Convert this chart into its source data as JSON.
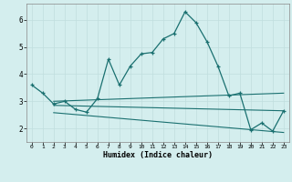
{
  "title": "",
  "xlabel": "Humidex (Indice chaleur)",
  "background_color": "#d4eeee",
  "grid_color": "#c0dede",
  "line_color": "#1a7070",
  "xlim": [
    -0.5,
    23.5
  ],
  "ylim": [
    1.5,
    6.6
  ],
  "xticks": [
    0,
    1,
    2,
    3,
    4,
    5,
    6,
    7,
    8,
    9,
    10,
    11,
    12,
    13,
    14,
    15,
    16,
    17,
    18,
    19,
    20,
    21,
    22,
    23
  ],
  "yticks": [
    2,
    3,
    4,
    5,
    6
  ],
  "series": {
    "main": {
      "x": [
        0,
        1,
        2,
        3,
        4,
        5,
        6,
        7,
        8,
        9,
        10,
        11,
        12,
        13,
        14,
        15,
        16,
        17,
        18,
        19,
        20,
        21,
        22,
        23
      ],
      "y": [
        3.6,
        3.3,
        2.9,
        3.0,
        2.7,
        2.6,
        3.1,
        4.55,
        3.6,
        4.3,
        4.75,
        4.8,
        5.3,
        5.5,
        6.3,
        5.9,
        5.2,
        4.3,
        3.2,
        3.3,
        1.95,
        2.2,
        1.9,
        2.65
      ]
    },
    "upper_flat": {
      "x": [
        2,
        23
      ],
      "y": [
        3.0,
        3.3
      ]
    },
    "mid_flat": {
      "x": [
        2,
        23
      ],
      "y": [
        2.85,
        2.65
      ]
    },
    "lower_flat": {
      "x": [
        2,
        23
      ],
      "y": [
        2.58,
        1.85
      ]
    }
  }
}
